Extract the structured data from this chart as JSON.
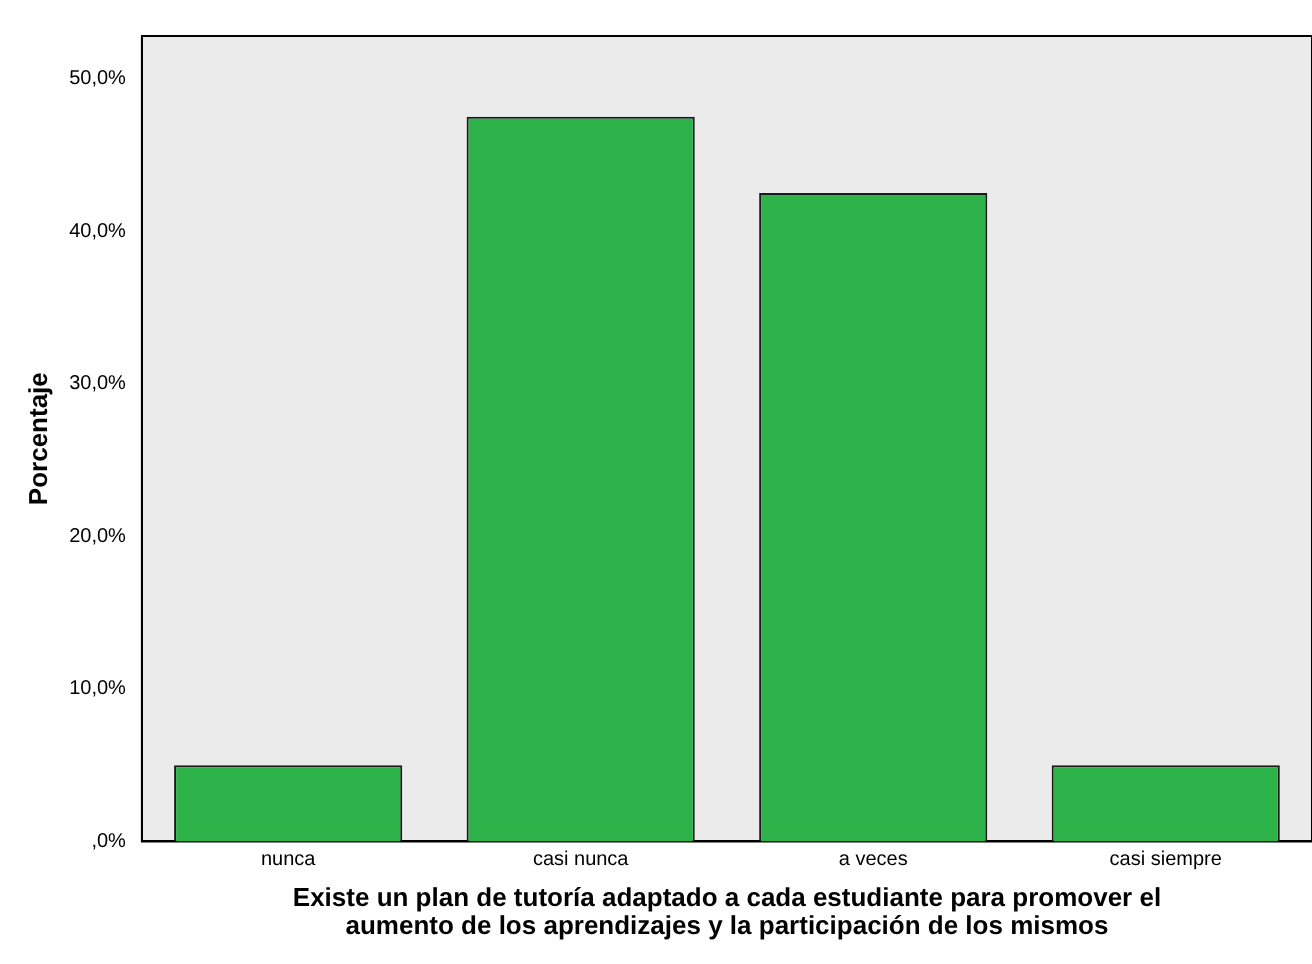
{
  "chart_data": {
    "type": "bar",
    "categories": [
      "nunca",
      "casi nunca",
      "a veces",
      "casi siempre"
    ],
    "values": [
      5,
      47.5,
      42.5,
      5
    ],
    "color": "#2db34a",
    "xlabel": "Existe un plan de tutoría adaptado a cada estudiante para promover el\naumento de los aprendizajes y la participación de los mismos",
    "ylabel": "Porcentaje",
    "ylim": [
      0,
      52.8
    ],
    "yticks": [
      {
        "value": 0,
        "label": ",0%"
      },
      {
        "value": 10,
        "label": "10,0%"
      },
      {
        "value": 20,
        "label": "20,0%"
      },
      {
        "value": 30,
        "label": "30,0%"
      },
      {
        "value": 40,
        "label": "40,0%"
      },
      {
        "value": 50,
        "label": "50,0%"
      }
    ],
    "grid": false,
    "legend": false
  }
}
